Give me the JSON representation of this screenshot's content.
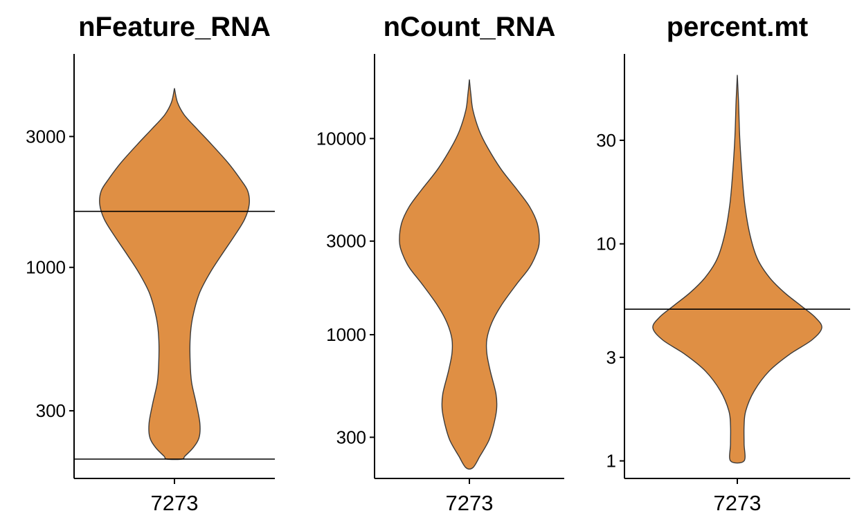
{
  "chart_data": [
    {
      "type": "violin",
      "title": "nFeature_RNA",
      "xlabel": "",
      "ylabel": "",
      "y_scale": "log10",
      "categories": [
        "7273"
      ],
      "yticks": [
        300,
        1000,
        3000
      ],
      "ytick_labels": [
        "300",
        "1000",
        "3000"
      ],
      "ylim": [
        170,
        6000
      ],
      "data_range": [
        200,
        4500
      ],
      "density": [
        [
          4500,
          0.0
        ],
        [
          4000,
          0.04
        ],
        [
          3600,
          0.13
        ],
        [
          3200,
          0.3
        ],
        [
          2800,
          0.5
        ],
        [
          2400,
          0.72
        ],
        [
          2100,
          0.88
        ],
        [
          1900,
          0.98
        ],
        [
          1700,
          1.0
        ],
        [
          1500,
          0.94
        ],
        [
          1300,
          0.8
        ],
        [
          1100,
          0.62
        ],
        [
          950,
          0.47
        ],
        [
          800,
          0.33
        ],
        [
          650,
          0.24
        ],
        [
          550,
          0.21
        ],
        [
          450,
          0.21
        ],
        [
          380,
          0.23
        ],
        [
          320,
          0.29
        ],
        [
          270,
          0.34
        ],
        [
          240,
          0.33
        ],
        [
          220,
          0.25
        ],
        [
          205,
          0.14
        ],
        [
          200,
          0.1
        ]
      ],
      "hlines": [
        1600,
        200
      ],
      "fill_color": "#df8f44",
      "grid": false
    },
    {
      "type": "violin",
      "title": "nCount_RNA",
      "xlabel": "",
      "ylabel": "",
      "y_scale": "log10",
      "categories": [
        "7273"
      ],
      "yticks": [
        300,
        1000,
        3000,
        10000
      ],
      "ytick_labels": [
        "300",
        "1000",
        "3000",
        "10000"
      ],
      "ylim": [
        185,
        27000
      ],
      "data_range": [
        210,
        20000
      ],
      "density": [
        [
          20000,
          0.0
        ],
        [
          17000,
          0.02
        ],
        [
          14000,
          0.05
        ],
        [
          11000,
          0.14
        ],
        [
          9000,
          0.26
        ],
        [
          7000,
          0.45
        ],
        [
          5500,
          0.68
        ],
        [
          4500,
          0.86
        ],
        [
          3700,
          0.97
        ],
        [
          3000,
          1.0
        ],
        [
          2600,
          0.96
        ],
        [
          2200,
          0.86
        ],
        [
          1800,
          0.67
        ],
        [
          1400,
          0.45
        ],
        [
          1150,
          0.32
        ],
        [
          950,
          0.25
        ],
        [
          800,
          0.25
        ],
        [
          650,
          0.3
        ],
        [
          500,
          0.38
        ],
        [
          420,
          0.39
        ],
        [
          350,
          0.35
        ],
        [
          290,
          0.28
        ],
        [
          240,
          0.15
        ],
        [
          210,
          0.05
        ]
      ],
      "hlines": [],
      "fill_color": "#df8f44",
      "grid": false
    },
    {
      "type": "violin",
      "title": "percent.mt",
      "xlabel": "",
      "ylabel": "",
      "y_scale": "log10",
      "categories": [
        "7273"
      ],
      "yticks": [
        1,
        3,
        10,
        30
      ],
      "ytick_labels": [
        "1",
        "3",
        "10",
        "30"
      ],
      "ylim": [
        0.83,
        75
      ],
      "data_range": [
        1,
        60
      ],
      "density": [
        [
          60,
          0.0
        ],
        [
          45,
          0.015
        ],
        [
          30,
          0.03
        ],
        [
          20,
          0.06
        ],
        [
          15,
          0.09
        ],
        [
          11,
          0.15
        ],
        [
          8.5,
          0.24
        ],
        [
          7,
          0.38
        ],
        [
          6,
          0.55
        ],
        [
          5.2,
          0.75
        ],
        [
          4.6,
          0.92
        ],
        [
          4.1,
          1.0
        ],
        [
          3.6,
          0.88
        ],
        [
          3.1,
          0.62
        ],
        [
          2.6,
          0.38
        ],
        [
          2.1,
          0.2
        ],
        [
          1.7,
          0.1
        ],
        [
          1.45,
          0.08
        ],
        [
          1.2,
          0.08
        ],
        [
          1.0,
          0.08
        ]
      ],
      "hlines": [
        5
      ],
      "fill_color": "#df8f44",
      "grid": false
    }
  ]
}
